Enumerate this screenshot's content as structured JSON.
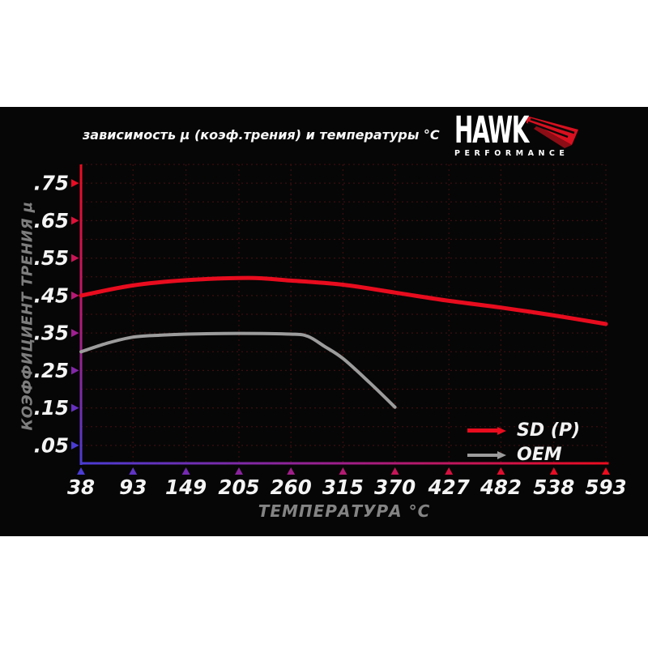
{
  "header": {
    "title": "зависимость μ (коэф.трения) и температуры °C",
    "logo": {
      "brand": "HAWK",
      "sub": "PERFORMANCE"
    }
  },
  "colors": {
    "page_background": "#ffffff",
    "panel_background": "#060606",
    "grid": "#3c0e10",
    "tick_label": "#f4f4f4",
    "axis_title": "#7e7e7e",
    "brand_red": "#d8101f"
  },
  "chart_data": {
    "type": "line",
    "title": "зависимость μ (коэф.трения) и температуры °C",
    "xlabel": "ТЕМПЕРАТУРА °C",
    "ylabel": "КОЭФФИЦИЕНТ ТРЕНИЯ μ",
    "xlim": [
      38,
      593
    ],
    "ylim": [
      0,
      0.8
    ],
    "grid": "dotted, horizontal every 0.05, vertical at each temperature tick",
    "legend_position": "bottom-right",
    "axis_gradient_vertical": [
      "#ed0c1e",
      "#b61a75",
      "#4a3cd4"
    ],
    "axis_gradient_horizontal": [
      "#4a3cd4",
      "#a01e89",
      "#ed0c1e"
    ],
    "x_ticks": [
      {
        "label": "38",
        "value": 38,
        "color": "#4a3cd4"
      },
      {
        "label": "93",
        "value": 93,
        "color": "#5f33c5"
      },
      {
        "label": "149",
        "value": 149,
        "color": "#7529b2"
      },
      {
        "label": "205",
        "value": 205,
        "color": "#8b239e"
      },
      {
        "label": "260",
        "value": 260,
        "color": "#a01e89"
      },
      {
        "label": "315",
        "value": 315,
        "color": "#b41a72"
      },
      {
        "label": "370",
        "value": 370,
        "color": "#c61559"
      },
      {
        "label": "427",
        "value": 427,
        "color": "#d51140"
      },
      {
        "label": "482",
        "value": 482,
        "color": "#e00e2f"
      },
      {
        "label": "538",
        "value": 538,
        "color": "#e80d24"
      },
      {
        "label": "593",
        "value": 593,
        "color": "#ed0c1e"
      }
    ],
    "y_ticks": [
      {
        "label": ".05",
        "value": 0.05,
        "color": "#4a3cd4"
      },
      {
        "label": ".15",
        "value": 0.15,
        "color": "#6630c0"
      },
      {
        "label": ".25",
        "value": 0.25,
        "color": "#8326a8"
      },
      {
        "label": ".35",
        "value": 0.35,
        "color": "#9f1f90"
      },
      {
        "label": ".45",
        "value": 0.45,
        "color": "#b61a75"
      },
      {
        "label": ".55",
        "value": 0.55,
        "color": "#c91556"
      },
      {
        "label": ".65",
        "value": 0.65,
        "color": "#dc1038"
      },
      {
        "label": ".75",
        "value": 0.75,
        "color": "#e90d24"
      }
    ],
    "legend": {
      "entries": [
        {
          "name": "SD (P)",
          "color": "#e80c1e"
        },
        {
          "name": "OEM",
          "color": "#9c9c9c"
        }
      ]
    },
    "series": [
      {
        "name": "SD (P)",
        "color": "#e80c1e",
        "width": 5,
        "points": [
          [
            38,
            0.45
          ],
          [
            93,
            0.477
          ],
          [
            149,
            0.491
          ],
          [
            215,
            0.497
          ],
          [
            260,
            0.49
          ],
          [
            315,
            0.479
          ],
          [
            370,
            0.458
          ],
          [
            427,
            0.436
          ],
          [
            482,
            0.418
          ],
          [
            538,
            0.397
          ],
          [
            593,
            0.374
          ]
        ]
      },
      {
        "name": "OEM",
        "color": "#9c9c9c",
        "width": 4,
        "points": [
          [
            38,
            0.3
          ],
          [
            66,
            0.323
          ],
          [
            93,
            0.339
          ],
          [
            121,
            0.344
          ],
          [
            149,
            0.347
          ],
          [
            205,
            0.349
          ],
          [
            260,
            0.347
          ],
          [
            278,
            0.341
          ],
          [
            295,
            0.315
          ],
          [
            315,
            0.282
          ],
          [
            343,
            0.218
          ],
          [
            370,
            0.152
          ]
        ]
      }
    ]
  }
}
